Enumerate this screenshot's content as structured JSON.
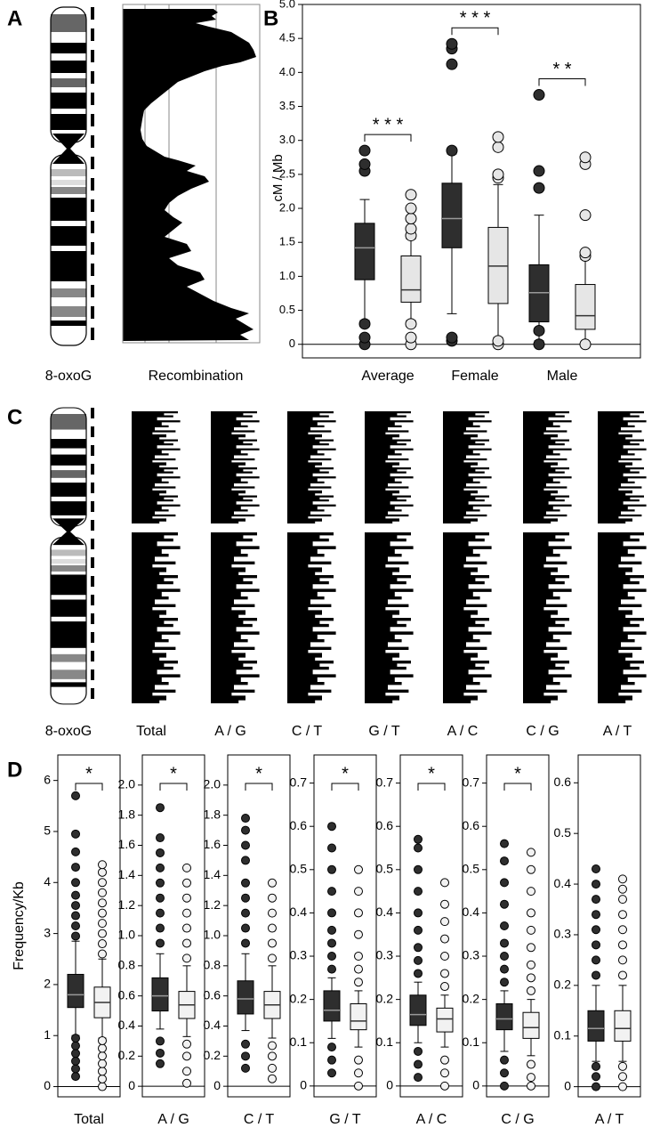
{
  "panel_a": {
    "letter": "A",
    "chromosome_label": "8-oxoG",
    "track_label": "Recombination"
  },
  "panel_c": {
    "letter": "C",
    "chromosome_label": "8-oxoG",
    "track_labels": [
      "Total",
      "A / G",
      "C / T",
      "G / T",
      "A / C",
      "C / G",
      "A / T"
    ]
  },
  "panel_d": {
    "letter": "D",
    "y_label": "Frequency/Kb"
  },
  "chart_data": [
    {
      "letter": "B",
      "type": "box",
      "y_label": "cM / Mb",
      "ylim": [
        -0.2,
        5.0
      ],
      "yticks": [
        0,
        0.5,
        {
          "value": 1,
          "label": "1.0"
        },
        1.5,
        {
          "value": 2,
          "label": "2.0"
        },
        2.5,
        {
          "value": 3,
          "label": "3.0"
        },
        3.5,
        {
          "value": 4,
          "label": "4.0"
        },
        4.5,
        {
          "value": 5,
          "label": "5.0"
        }
      ],
      "zero_line": true,
      "categories": [
        "Average",
        "Female",
        "Male"
      ],
      "significance": [
        "* * *",
        "* * *",
        "* *"
      ],
      "series": [
        {
          "color": "#2e2e2e",
          "median_color": "#999999",
          "values": [
            {
              "low": 0.35,
              "q1": 0.95,
              "median": 1.42,
              "q3": 1.78,
              "high": 2.13,
              "outliers": [
                0.0,
                0.1,
                0.3,
                2.55,
                2.65,
                2.85
              ]
            },
            {
              "low": 0.45,
              "q1": 1.42,
              "median": 1.85,
              "q3": 2.37,
              "high": 2.8,
              "outliers": [
                0.05,
                0.1,
                2.85,
                4.12,
                4.35,
                4.42
              ]
            },
            {
              "low": 0.05,
              "q1": 0.33,
              "median": 0.76,
              "q3": 1.17,
              "high": 1.9,
              "outliers": [
                0.0,
                0.2,
                2.3,
                2.55,
                3.67
              ]
            }
          ]
        },
        {
          "color": "#e6e6e6",
          "median_color": "#333333",
          "values": [
            {
              "low": 0.35,
              "q1": 0.62,
              "median": 0.8,
              "q3": 1.3,
              "high": 1.55,
              "outliers": [
                0.0,
                0.1,
                0.3,
                1.6,
                1.7,
                1.85,
                2.0,
                2.2
              ]
            },
            {
              "low": 0.1,
              "q1": 0.6,
              "median": 1.15,
              "q3": 1.72,
              "high": 2.35,
              "outliers": [
                0.0,
                0.05,
                2.45,
                2.5,
                2.9,
                3.05
              ]
            },
            {
              "low": 0.0,
              "q1": 0.22,
              "median": 0.42,
              "q3": 0.88,
              "high": 1.25,
              "outliers": [
                0.0,
                1.3,
                1.35,
                1.9,
                2.65,
                2.75
              ]
            }
          ]
        }
      ]
    },
    {
      "type": "box",
      "x_label": "Total",
      "ylim": [
        -0.2,
        6.5
      ],
      "yticks": [
        0,
        1,
        2,
        3,
        4,
        5,
        6
      ],
      "zero_line": true,
      "significance": "*",
      "series": [
        {
          "color": "#2e2e2e",
          "median_color": "#999999",
          "values": [
            {
              "low": 1.0,
              "q1": 1.55,
              "median": 1.8,
              "q3": 2.2,
              "high": 2.85,
              "outliers": [
                0.2,
                0.35,
                0.5,
                0.65,
                0.8,
                0.95,
                2.95,
                3.15,
                3.35,
                3.55,
                3.75,
                4.0,
                4.3,
                4.6,
                4.95,
                5.7
              ]
            }
          ]
        },
        {
          "color": "#f2f2f2",
          "median_color": "#333333",
          "values": [
            {
              "low": 0.95,
              "q1": 1.35,
              "median": 1.65,
              "q3": 1.95,
              "high": 2.5,
              "outliers": [
                0.0,
                0.15,
                0.3,
                0.45,
                0.6,
                0.75,
                0.9,
                2.6,
                2.8,
                3.0,
                3.2,
                3.4,
                3.6,
                3.8,
                4.0,
                4.2,
                4.35
              ]
            }
          ]
        }
      ]
    },
    {
      "type": "box",
      "x_label": "A / G",
      "ylim": [
        -0.07,
        2.2
      ],
      "yticks": [
        0,
        0.2,
        0.4,
        0.6,
        0.8,
        {
          "value": 1,
          "label": "1.0"
        },
        1.2,
        1.4,
        1.6,
        1.8,
        {
          "value": 2,
          "label": "2.0"
        }
      ],
      "zero_line": true,
      "significance": "*",
      "series": [
        {
          "color": "#2e2e2e",
          "median_color": "#999999",
          "values": [
            {
              "low": 0.38,
              "q1": 0.5,
              "median": 0.6,
              "q3": 0.72,
              "high": 0.88,
              "outliers": [
                0.15,
                0.22,
                0.3,
                0.95,
                1.05,
                1.15,
                1.25,
                1.35,
                1.45,
                1.55,
                1.65,
                1.85
              ]
            }
          ]
        },
        {
          "color": "#f2f2f2",
          "median_color": "#333333",
          "values": [
            {
              "low": 0.33,
              "q1": 0.45,
              "median": 0.54,
              "q3": 0.63,
              "high": 0.8,
              "outliers": [
                0.02,
                0.1,
                0.2,
                0.28,
                0.85,
                0.95,
                1.05,
                1.15,
                1.25,
                1.35,
                1.45
              ]
            }
          ]
        }
      ]
    },
    {
      "type": "box",
      "x_label": "C / T",
      "ylim": [
        -0.07,
        2.2
      ],
      "yticks": [
        0,
        0.2,
        0.4,
        0.6,
        0.8,
        {
          "value": 1,
          "label": "1.0"
        },
        1.2,
        1.4,
        1.6,
        1.8,
        {
          "value": 2,
          "label": "2.0"
        }
      ],
      "zero_line": true,
      "significance": "*",
      "series": [
        {
          "color": "#2e2e2e",
          "median_color": "#999999",
          "values": [
            {
              "low": 0.37,
              "q1": 0.48,
              "median": 0.58,
              "q3": 0.7,
              "high": 0.88,
              "outliers": [
                0.12,
                0.2,
                0.28,
                0.95,
                1.05,
                1.15,
                1.25,
                1.35,
                1.5,
                1.6,
                1.7,
                1.78
              ]
            }
          ]
        },
        {
          "color": "#f2f2f2",
          "median_color": "#333333",
          "values": [
            {
              "low": 0.32,
              "q1": 0.45,
              "median": 0.54,
              "q3": 0.63,
              "high": 0.8,
              "outliers": [
                0.05,
                0.12,
                0.2,
                0.27,
                0.85,
                0.95,
                1.05,
                1.15,
                1.25,
                1.35
              ]
            }
          ]
        }
      ]
    },
    {
      "type": "box",
      "x_label": "G / T",
      "ylim": [
        -0.025,
        0.765
      ],
      "yticks": [
        0,
        0.1,
        0.2,
        0.3,
        0.4,
        0.5,
        0.6,
        0.7
      ],
      "zero_line": true,
      "significance": "*",
      "series": [
        {
          "color": "#2e2e2e",
          "median_color": "#999999",
          "values": [
            {
              "low": 0.11,
              "q1": 0.15,
              "median": 0.175,
              "q3": 0.22,
              "high": 0.25,
              "outliers": [
                0.03,
                0.06,
                0.09,
                0.27,
                0.3,
                0.33,
                0.36,
                0.4,
                0.45,
                0.5,
                0.55,
                0.6
              ]
            }
          ]
        },
        {
          "color": "#f2f2f2",
          "median_color": "#333333",
          "values": [
            {
              "low": 0.09,
              "q1": 0.13,
              "median": 0.15,
              "q3": 0.19,
              "high": 0.22,
              "outliers": [
                0.0,
                0.03,
                0.06,
                0.24,
                0.27,
                0.3,
                0.35,
                0.4,
                0.45,
                0.5
              ]
            }
          ]
        }
      ]
    },
    {
      "type": "box",
      "x_label": "A / C",
      "ylim": [
        -0.025,
        0.765
      ],
      "yticks": [
        0,
        0.1,
        0.2,
        0.3,
        0.4,
        0.5,
        0.6,
        0.7
      ],
      "zero_line": true,
      "significance": "*",
      "series": [
        {
          "color": "#2e2e2e",
          "median_color": "#999999",
          "values": [
            {
              "low": 0.1,
              "q1": 0.14,
              "median": 0.165,
              "q3": 0.21,
              "high": 0.24,
              "outliers": [
                0.02,
                0.05,
                0.08,
                0.26,
                0.29,
                0.32,
                0.36,
                0.4,
                0.45,
                0.5,
                0.55,
                0.57
              ]
            }
          ]
        },
        {
          "color": "#f2f2f2",
          "median_color": "#333333",
          "values": [
            {
              "low": 0.09,
              "q1": 0.125,
              "median": 0.155,
              "q3": 0.18,
              "high": 0.21,
              "outliers": [
                0.0,
                0.03,
                0.06,
                0.23,
                0.26,
                0.3,
                0.34,
                0.38,
                0.42,
                0.47
              ]
            }
          ]
        }
      ]
    },
    {
      "type": "box",
      "x_label": "C / G",
      "ylim": [
        -0.025,
        0.765
      ],
      "yticks": [
        0,
        0.1,
        0.2,
        0.3,
        0.4,
        0.5,
        0.6,
        0.7
      ],
      "zero_line": true,
      "significance": "*",
      "series": [
        {
          "color": "#2e2e2e",
          "median_color": "#999999",
          "values": [
            {
              "low": 0.08,
              "q1": 0.13,
              "median": 0.155,
              "q3": 0.19,
              "high": 0.22,
              "outliers": [
                0.0,
                0.03,
                0.06,
                0.24,
                0.27,
                0.3,
                0.33,
                0.37,
                0.42,
                0.47,
                0.52,
                0.56
              ]
            }
          ]
        },
        {
          "color": "#f2f2f2",
          "median_color": "#333333",
          "values": [
            {
              "low": 0.07,
              "q1": 0.11,
              "median": 0.135,
              "q3": 0.17,
              "high": 0.2,
              "outliers": [
                0.0,
                0.02,
                0.05,
                0.22,
                0.25,
                0.28,
                0.32,
                0.36,
                0.4,
                0.45,
                0.5,
                0.54
              ]
            }
          ]
        }
      ]
    },
    {
      "type": "box",
      "x_label": "A / T",
      "ylim": [
        -0.02,
        0.655
      ],
      "yticks": [
        0,
        0.1,
        0.2,
        0.3,
        0.4,
        0.5,
        0.6
      ],
      "zero_line": true,
      "significance": null,
      "series": [
        {
          "color": "#2e2e2e",
          "median_color": "#999999",
          "values": [
            {
              "low": 0.05,
              "q1": 0.09,
              "median": 0.115,
              "q3": 0.15,
              "high": 0.2,
              "outliers": [
                0.0,
                0.02,
                0.04,
                0.22,
                0.25,
                0.28,
                0.31,
                0.34,
                0.37,
                0.4,
                0.43
              ]
            }
          ]
        },
        {
          "color": "#f2f2f2",
          "median_color": "#333333",
          "values": [
            {
              "low": 0.05,
              "q1": 0.09,
              "median": 0.115,
              "q3": 0.15,
              "high": 0.2,
              "outliers": [
                0.0,
                0.02,
                0.04,
                0.22,
                0.25,
                0.28,
                0.31,
                0.34,
                0.37,
                0.39,
                0.41
              ]
            }
          ]
        }
      ]
    }
  ]
}
